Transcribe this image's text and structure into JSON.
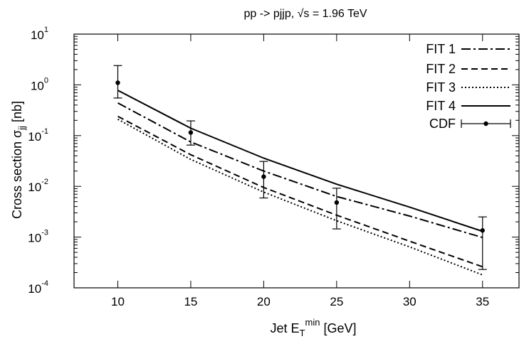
{
  "chart_data": {
    "type": "line",
    "title": "pp -> pjjp, √s = 1.96 TeV",
    "xlabel": {
      "base": "Jet E",
      "sub": "T",
      "sup": "min",
      "unit": " [GeV]"
    },
    "ylabel": {
      "base": "Cross section σ",
      "sub": "jj",
      "unit": " [nb]"
    },
    "xlim": [
      7,
      37.5
    ],
    "ylim": [
      0.0001,
      10
    ],
    "yscale": "log",
    "xticks": [
      10,
      15,
      20,
      25,
      30,
      35
    ],
    "xtick_labels": [
      "10",
      "15",
      "20",
      "25",
      "30",
      "35"
    ],
    "yticks": [
      {
        "value": 0.0001,
        "base": "10",
        "exp": "-4"
      },
      {
        "value": 0.001,
        "base": "10",
        "exp": "-3"
      },
      {
        "value": 0.01,
        "base": "10",
        "exp": "-2"
      },
      {
        "value": 0.1,
        "base": "10",
        "exp": "-1"
      },
      {
        "value": 1,
        "base": "10",
        "exp": "0"
      },
      {
        "value": 10,
        "base": "10",
        "exp": "1"
      }
    ],
    "legend_position": "top-right",
    "series": [
      {
        "name": "FIT 1",
        "style": "dash-dot",
        "x": [
          10,
          15,
          20,
          25,
          30,
          35
        ],
        "y": [
          0.44,
          0.075,
          0.02,
          0.0063,
          0.0026,
          0.00098
        ]
      },
      {
        "name": "FIT 2",
        "style": "dashed",
        "x": [
          10,
          15,
          20,
          25,
          30,
          35
        ],
        "y": [
          0.24,
          0.042,
          0.0095,
          0.0027,
          0.00083,
          0.00026
        ]
      },
      {
        "name": "FIT 3",
        "style": "dotted",
        "x": [
          10,
          15,
          20,
          25,
          30,
          35
        ],
        "y": [
          0.21,
          0.034,
          0.0077,
          0.0021,
          0.00064,
          0.00018
        ]
      },
      {
        "name": "FIT 4",
        "style": "solid",
        "x": [
          10,
          15,
          20,
          25,
          30,
          35
        ],
        "y": [
          0.78,
          0.14,
          0.036,
          0.011,
          0.0039,
          0.0013
        ]
      }
    ],
    "data_series": {
      "name": "CDF",
      "points": [
        {
          "x": 10,
          "y": 1.1,
          "ylow": 0.55,
          "yhigh": 2.4
        },
        {
          "x": 15,
          "y": 0.115,
          "ylow": 0.065,
          "yhigh": 0.195
        },
        {
          "x": 20,
          "y": 0.0155,
          "ylow": 0.0059,
          "yhigh": 0.031
        },
        {
          "x": 25,
          "y": 0.0048,
          "ylow": 0.00145,
          "yhigh": 0.0092
        },
        {
          "x": 35,
          "y": 0.00135,
          "ylow": 0.00023,
          "yhigh": 0.0025
        }
      ]
    }
  }
}
